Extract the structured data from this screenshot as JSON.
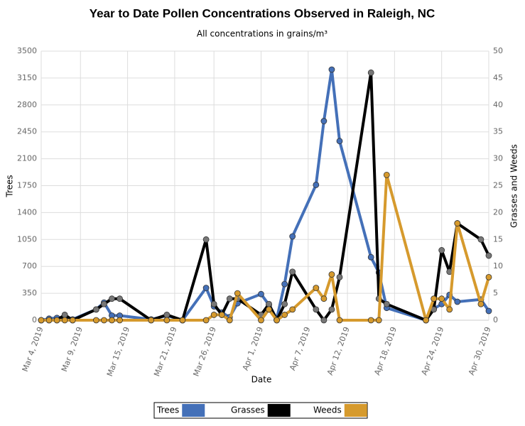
{
  "chart_data": {
    "type": "line",
    "title": "Year to Date Pollen Concentrations Observed in Raleigh, NC",
    "subtitle": "All concentrations in grains/m³",
    "x_label": "Date",
    "y_label": "Trees",
    "y2_label": "Grasses and Weeds",
    "x": [
      "2019-03-04",
      "2019-03-05",
      "2019-03-06",
      "2019-03-07",
      "2019-03-08",
      "2019-03-11",
      "2019-03-12",
      "2019-03-13",
      "2019-03-14",
      "2019-03-18",
      "2019-03-20",
      "2019-03-22",
      "2019-03-25",
      "2019-03-26",
      "2019-03-27",
      "2019-03-28",
      "2019-03-29",
      "2019-04-01",
      "2019-04-02",
      "2019-04-03",
      "2019-04-04",
      "2019-04-05",
      "2019-04-08",
      "2019-04-09",
      "2019-04-10",
      "2019-04-11",
      "2019-04-15",
      "2019-04-16",
      "2019-04-17",
      "2019-04-22",
      "2019-04-23",
      "2019-04-24",
      "2019-04-25",
      "2019-04-26",
      "2019-04-29",
      "2019-04-30"
    ],
    "xlim": [
      "2019-03-04",
      "2019-04-30"
    ],
    "xticks": [
      {
        "value": "2019-03-04",
        "label": "Mar 4, 2019"
      },
      {
        "value": "2019-03-09",
        "label": "Mar 9, 2019"
      },
      {
        "value": "2019-03-15",
        "label": "Mar 15, 2019"
      },
      {
        "value": "2019-03-21",
        "label": "Mar 21, 2019"
      },
      {
        "value": "2019-03-26",
        "label": "Mar 26, 2019"
      },
      {
        "value": "2019-04-01",
        "label": "Apr 1, 2019"
      },
      {
        "value": "2019-04-07",
        "label": "Apr 7, 2019"
      },
      {
        "value": "2019-04-12",
        "label": "Apr 12, 2019"
      },
      {
        "value": "2019-04-18",
        "label": "Apr 18, 2019"
      },
      {
        "value": "2019-04-24",
        "label": "Apr 24, 2019"
      },
      {
        "value": "2019-04-30",
        "label": "Apr 30, 2019"
      }
    ],
    "ylim": [
      0,
      3500
    ],
    "yticks": [
      0,
      350,
      700,
      1050,
      1400,
      1750,
      2100,
      2450,
      2800,
      3150,
      3500
    ],
    "y2lim": [
      0,
      50
    ],
    "y2ticks": [
      0,
      5,
      10,
      15,
      20,
      25,
      30,
      35,
      40,
      45,
      50
    ],
    "grid": true,
    "series": [
      {
        "name": "Trees",
        "color": "#4470b8",
        "values": [
          0,
          20,
          30,
          40,
          10,
          140,
          230,
          60,
          60,
          10,
          60,
          0,
          420,
          180,
          100,
          40,
          220,
          340,
          200,
          20,
          470,
          1090,
          1760,
          2590,
          3260,
          2330,
          820,
          620,
          160,
          0,
          150,
          210,
          330,
          240,
          270,
          120
        ]
      },
      {
        "name": "Grasses",
        "color": "#000000",
        "axis": "y2",
        "values": [
          0,
          0,
          0,
          1,
          0,
          2,
          3,
          4,
          4,
          0,
          1,
          0,
          15,
          3,
          1,
          4,
          4,
          1,
          3,
          0,
          3,
          9,
          2,
          0,
          2,
          8,
          46,
          4,
          3,
          0,
          2,
          13,
          9,
          18,
          15,
          12
        ]
      },
      {
        "name": "Weeds",
        "color": "#d69a2d",
        "axis": "y2",
        "values": [
          0,
          0,
          0,
          0,
          0,
          0,
          0,
          0,
          0,
          0,
          0,
          0,
          0,
          1,
          1,
          0,
          5,
          0,
          2,
          0,
          1,
          2,
          6,
          4,
          8.5,
          0,
          0,
          0,
          27,
          0,
          4,
          4,
          2,
          18,
          3,
          8
        ]
      }
    ]
  }
}
